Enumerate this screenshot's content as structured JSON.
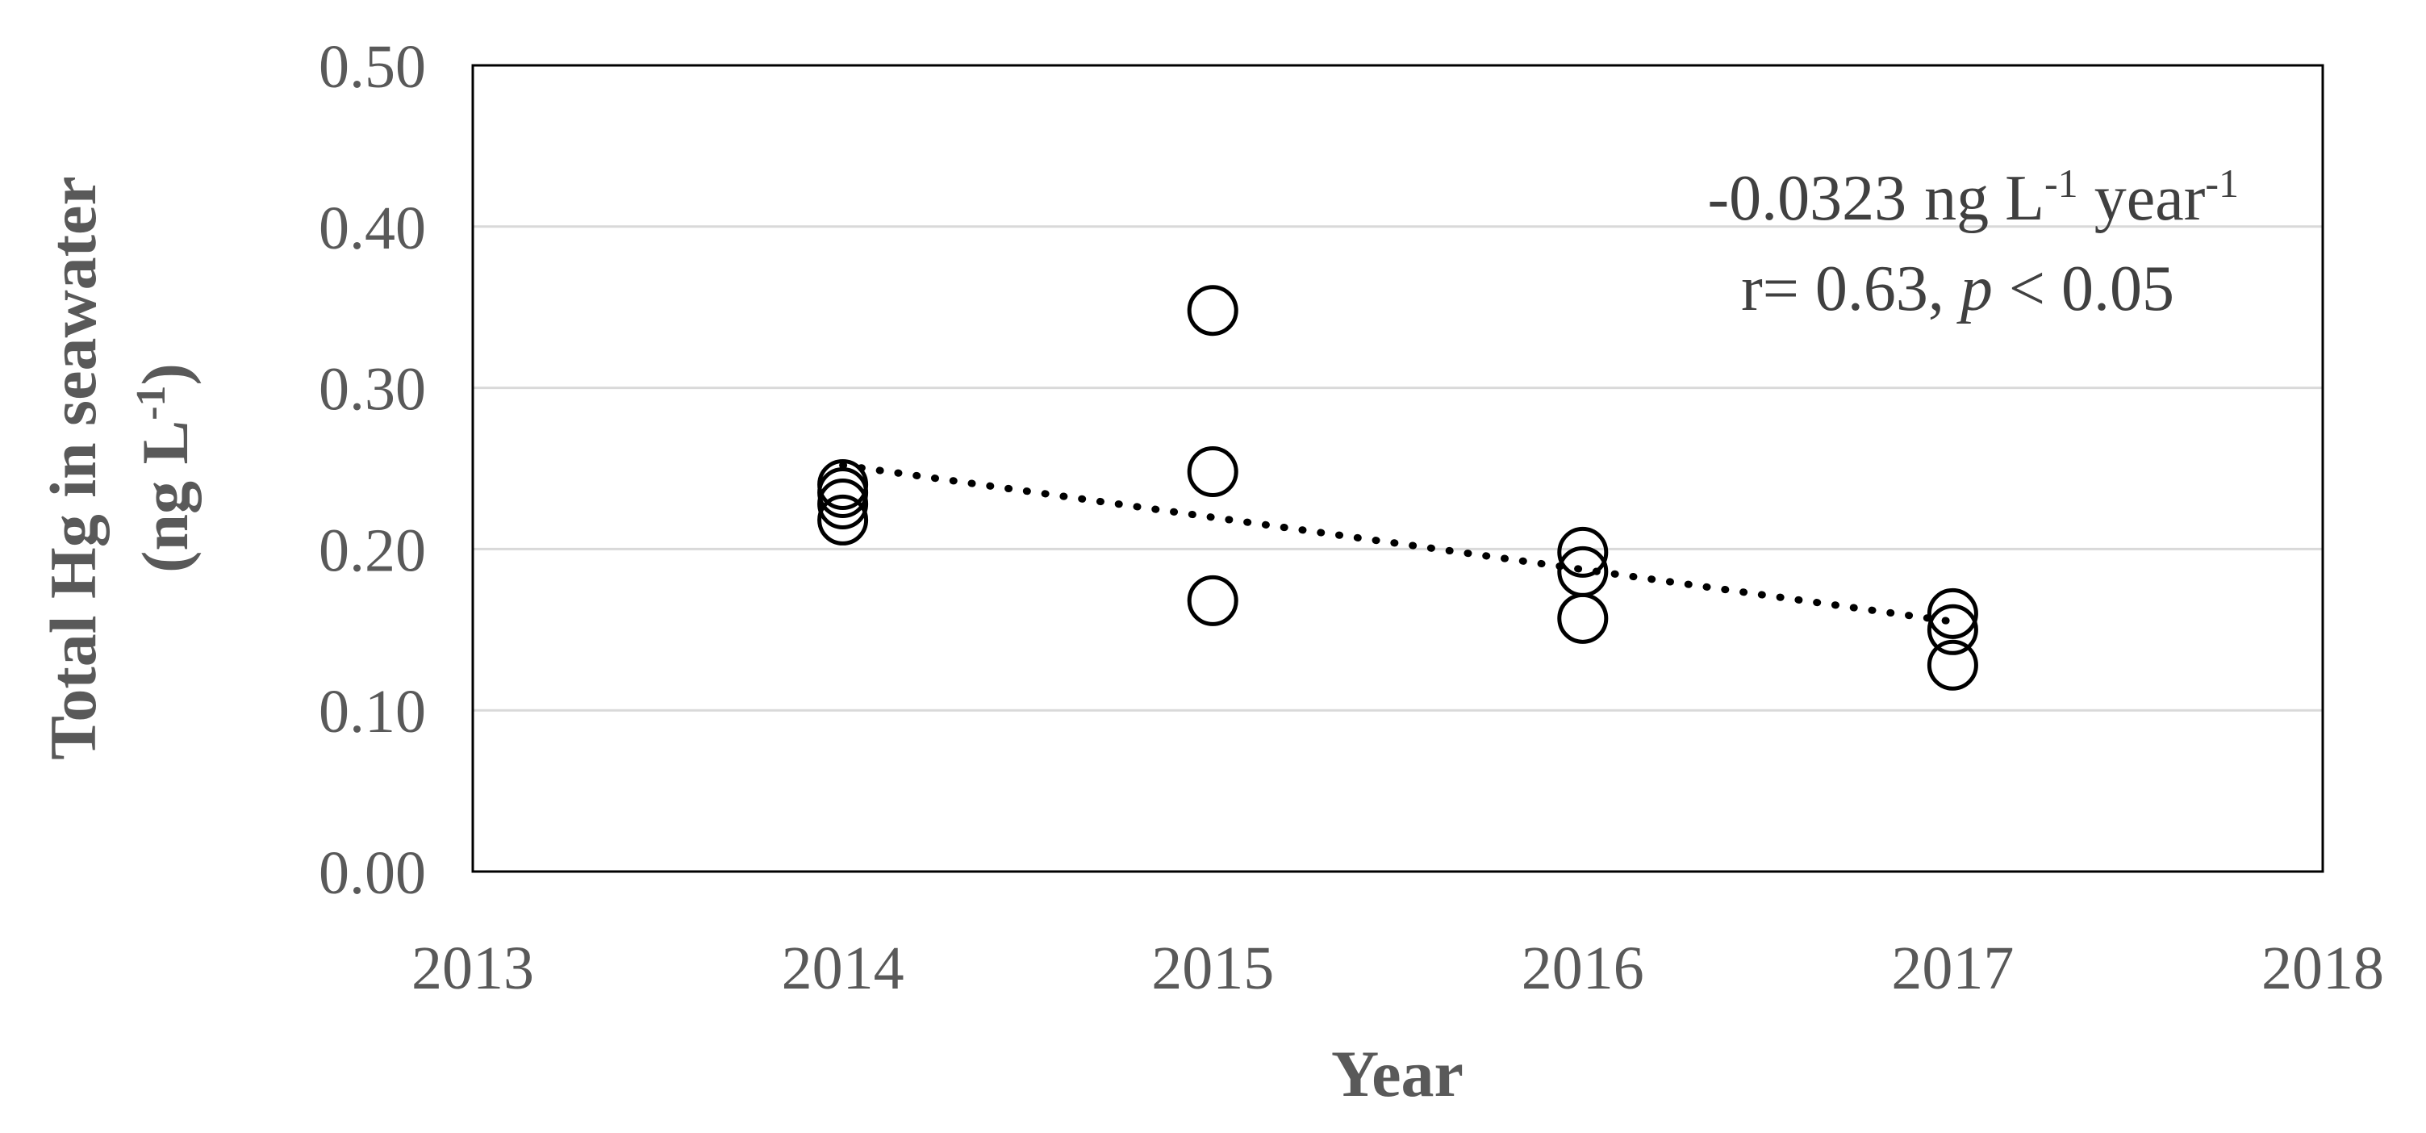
{
  "chart_data": {
    "type": "scatter",
    "xlabel": "Year",
    "ylabel": "Total Hg in seawater",
    "ylabel_unit": "(ng L",
    "ylabel_unit_sup": "-1",
    "ylabel_unit_close": ")",
    "xlim": [
      2013,
      2018
    ],
    "ylim": [
      0.0,
      0.5
    ],
    "x_ticks": [
      "2013",
      "2014",
      "2015",
      "2016",
      "2017",
      "2018"
    ],
    "y_ticks": [
      "0.00",
      "0.10",
      "0.20",
      "0.30",
      "0.40",
      "0.50"
    ],
    "grid": "horizontal",
    "points": [
      {
        "x": 2014,
        "y": 0.24
      },
      {
        "x": 2014,
        "y": 0.235
      },
      {
        "x": 2014,
        "y": 0.228
      },
      {
        "x": 2014,
        "y": 0.218
      },
      {
        "x": 2015,
        "y": 0.348
      },
      {
        "x": 2015,
        "y": 0.248
      },
      {
        "x": 2015,
        "y": 0.168
      },
      {
        "x": 2016,
        "y": 0.198
      },
      {
        "x": 2016,
        "y": 0.186
      },
      {
        "x": 2016,
        "y": 0.157
      },
      {
        "x": 2017,
        "y": 0.16
      },
      {
        "x": 2017,
        "y": 0.15
      },
      {
        "x": 2017,
        "y": 0.128
      }
    ],
    "trendline": {
      "style": "dotted",
      "x": [
        2014,
        2017
      ],
      "y": [
        0.252,
        0.155
      ]
    },
    "annotation": {
      "slope_value": "-0.0323",
      "slope_unit_a": "ng L",
      "slope_sup_a": "-1",
      "slope_unit_b": " year",
      "slope_sup_b": "-1",
      "stat_r": "r= 0.63, ",
      "stat_p": "p",
      "stat_p_rest": " < 0.05"
    }
  }
}
